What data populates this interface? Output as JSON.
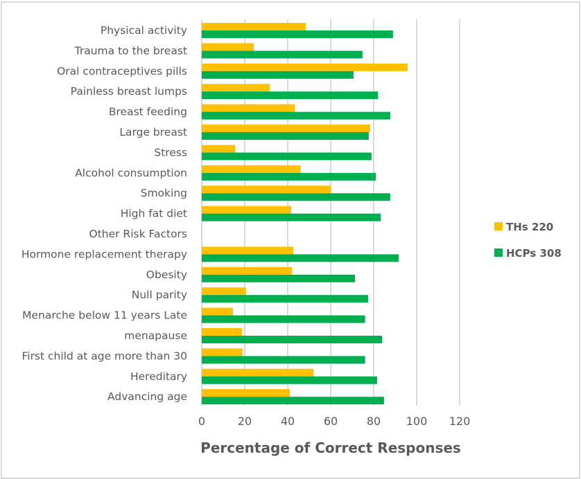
{
  "chart_data": {
    "type": "bar",
    "orientation": "horizontal",
    "title": "",
    "xlabel": "Percentage of Correct Responses",
    "ylabel": "",
    "xlim": [
      0,
      120
    ],
    "xticks": [
      0,
      20,
      40,
      60,
      80,
      100,
      120
    ],
    "grid": true,
    "legend_position": "right",
    "categories": [
      "Physical activity",
      "Trauma to the breast",
      "Oral contraceptives pills",
      "Painless breast lumps",
      "Breast feeding",
      "Large breast",
      "Stress",
      "Alcohol consumption",
      "Smoking",
      "High fat diet",
      "Other Risk Factors",
      "Hormone replacement therapy",
      "Obesity",
      "Null parity",
      "Menarche below 11 years Late",
      "menapause",
      "First child at age more than 30",
      "Hereditary",
      "Advancing age"
    ],
    "series": [
      {
        "name": "THs 220",
        "color": "#FFC000",
        "values": [
          48.4,
          24.2,
          95.8,
          31.6,
          43.3,
          78.4,
          15.6,
          46.0,
          60.0,
          41.6,
          null,
          42.6,
          42.0,
          20.6,
          14.5,
          18.7,
          19.0,
          52.0,
          41.0
        ]
      },
      {
        "name": "HCPs 308",
        "color": "#00B050",
        "values": [
          89.0,
          74.8,
          70.6,
          82.0,
          87.7,
          77.7,
          79.0,
          81.0,
          87.7,
          83.3,
          null,
          91.6,
          71.3,
          77.4,
          76.0,
          83.9,
          76.0,
          81.6,
          84.8
        ]
      }
    ]
  }
}
